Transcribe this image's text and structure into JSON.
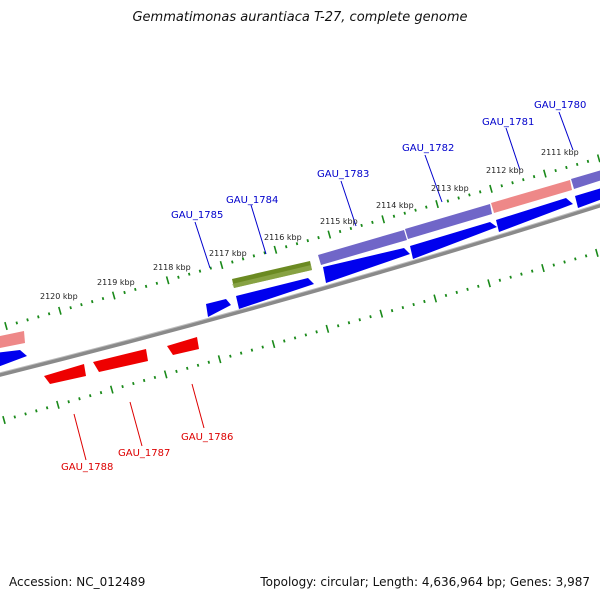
{
  "title": "Gemmatimonas aurantiaca T-27, complete genome",
  "footer": {
    "accession": "Accession: NC_012489",
    "summary": "Topology: circular; Length: 4,636,964 bp; Genes: 3,987"
  },
  "colors": {
    "forward_gene": "#0000ee",
    "reverse_gene": "#ee0000",
    "forward_label": "#0000cc",
    "reverse_label": "#dd0000",
    "tick": "#1a8a1a",
    "backbone": "#888888",
    "purple_band": "#7b6fd0",
    "pink_band": "#f08888",
    "olive_band": "#6b8a22"
  },
  "ticks": [
    "2111 kbp",
    "2112 kbp",
    "2113 kbp",
    "2114 kbp",
    "2115 kbp",
    "2116 kbp",
    "2117 kbp",
    "2118 kbp",
    "2119 kbp",
    "2120 kbp"
  ],
  "genes_forward": [
    "GAU_1780",
    "GAU_1781",
    "GAU_1782",
    "GAU_1783",
    "GAU_1784",
    "GAU_1785"
  ],
  "genes_reverse": [
    "GAU_1786",
    "GAU_1787",
    "GAU_1788"
  ]
}
